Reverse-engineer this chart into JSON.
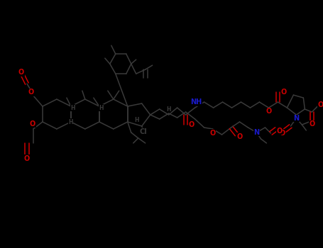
{
  "bg_color": "#000000",
  "bond_color": "#3a3a3a",
  "bond_lw": 1.1,
  "atom_colors": {
    "C": "#3a3a3a",
    "O": "#cc0000",
    "N": "#1a1acc",
    "Cl": "#3a3a3a"
  },
  "figsize": [
    4.55,
    3.5
  ],
  "dpi": 100,
  "xlim": [
    0,
    455
  ],
  "ylim": [
    0,
    350
  ]
}
